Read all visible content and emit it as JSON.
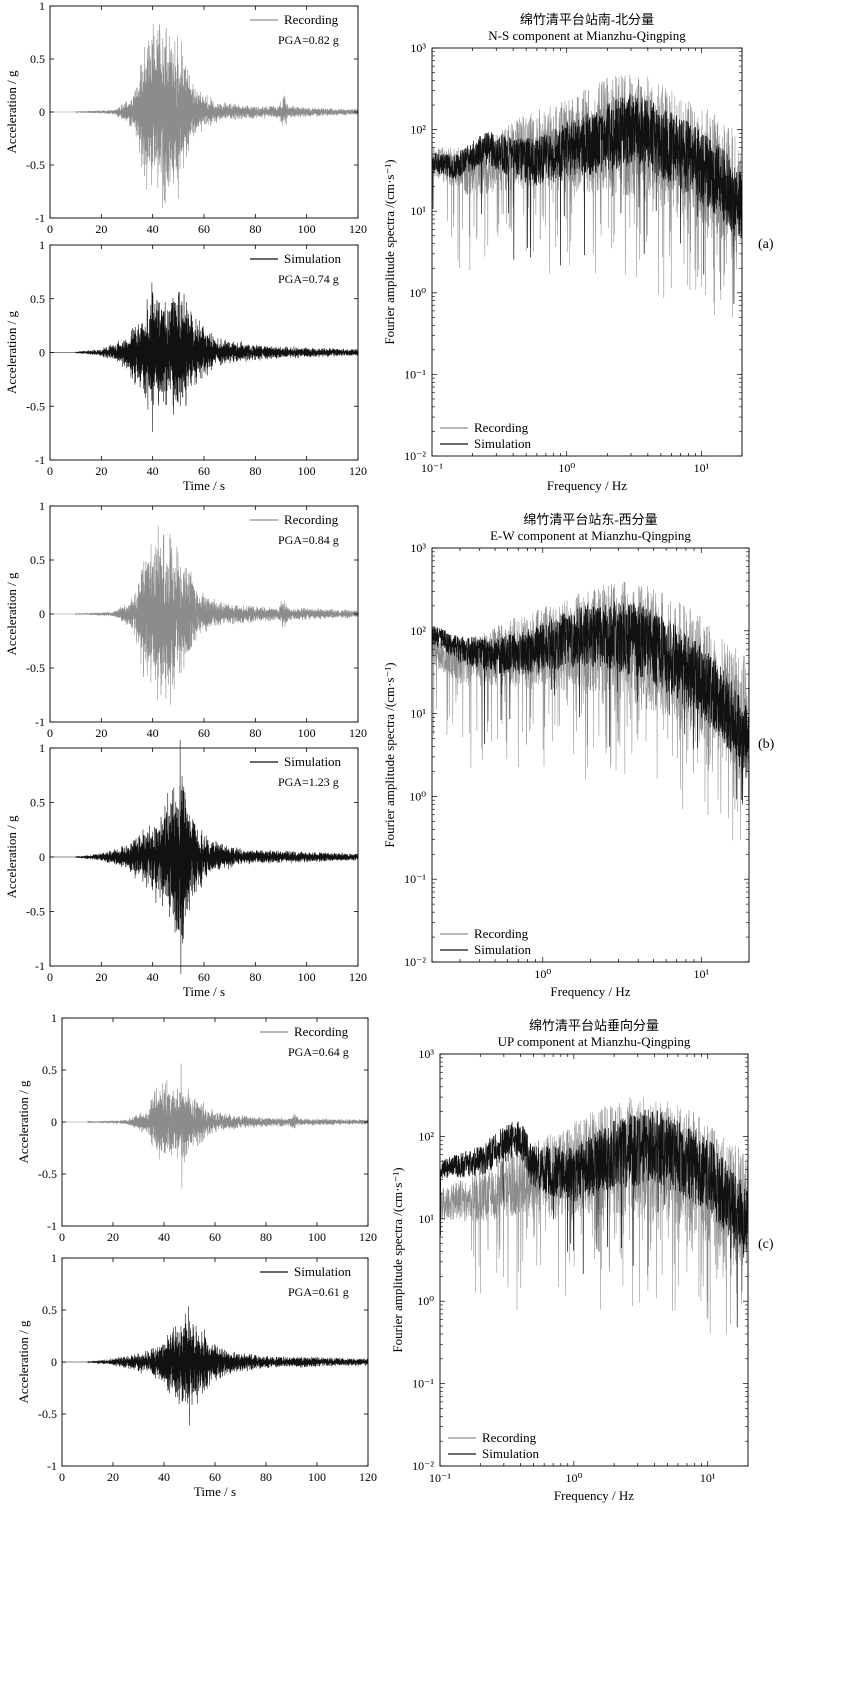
{
  "chart_data": [
    {
      "type": "line",
      "panel": "a",
      "id": "a-rec",
      "ylabel": "Acceleration / g",
      "xlabel": "",
      "xlim": [
        0,
        120
      ],
      "ylim": [
        -1,
        1
      ],
      "xticks": [
        "0",
        "20",
        "40",
        "60",
        "80",
        "100",
        "120"
      ],
      "yticks": [
        "-1",
        "-0.5",
        "0",
        "0.5",
        "1"
      ],
      "legend": {
        "label": "Recording",
        "placement": "top-right"
      },
      "annotation": "PGA=0.82 g",
      "series": [
        {
          "name": "Recording",
          "color": "#8c8c8c",
          "pga": 0.82,
          "pga_time": 50,
          "onset": 10,
          "envelope": [
            [
              10,
              0.004
            ],
            [
              25,
              0.02
            ],
            [
              33,
              0.15
            ],
            [
              37,
              0.6
            ],
            [
              42,
              0.75
            ],
            [
              47,
              0.65
            ],
            [
              52,
              0.5
            ],
            [
              57,
              0.2
            ],
            [
              65,
              0.08
            ],
            [
              80,
              0.05
            ],
            [
              89,
              0.05
            ],
            [
              91,
              0.15
            ],
            [
              93,
              0.05
            ],
            [
              110,
              0.03
            ],
            [
              120,
              0.025
            ]
          ]
        }
      ]
    },
    {
      "type": "line",
      "panel": "a",
      "id": "a-sim",
      "ylabel": "Acceleration / g",
      "xlabel": "Time / s",
      "xlim": [
        0,
        120
      ],
      "ylim": [
        -1,
        1
      ],
      "xticks": [
        "0",
        "20",
        "40",
        "60",
        "80",
        "100",
        "120"
      ],
      "yticks": [
        "-1",
        "-0.5",
        "0",
        "0.5",
        "1"
      ],
      "legend": {
        "label": "Simulation",
        "placement": "top-right"
      },
      "annotation": "PGA=0.74 g",
      "series": [
        {
          "name": "Simulation",
          "color": "#111111",
          "pga": 0.74,
          "pga_time": 40,
          "onset": 10,
          "envelope": [
            [
              10,
              0.005
            ],
            [
              20,
              0.03
            ],
            [
              28,
              0.1
            ],
            [
              35,
              0.3
            ],
            [
              40,
              0.5
            ],
            [
              47,
              0.45
            ],
            [
              51,
              0.55
            ],
            [
              56,
              0.3
            ],
            [
              65,
              0.12
            ],
            [
              80,
              0.06
            ],
            [
              100,
              0.04
            ],
            [
              120,
              0.03
            ]
          ]
        }
      ]
    },
    {
      "type": "line",
      "panel": "a",
      "id": "a-fas",
      "title": "绵竹清平台站南-北分量",
      "subtitle": "N-S component at Mianzhu-Qingping",
      "ylabel": "Fourier amplitude spectra /(cm·s⁻¹)",
      "xlabel": "Frequency / Hz",
      "xscale": "log",
      "yscale": "log",
      "xlim": [
        0.1,
        20
      ],
      "ylim": [
        0.01,
        1000
      ],
      "xticks": [
        "10⁻¹",
        "10⁰",
        "10¹"
      ],
      "yticks": [
        "10⁻²",
        "10⁻¹",
        "10⁰",
        "10¹",
        "10²",
        "10³"
      ],
      "legend": {
        "placement": "bottom-left"
      },
      "series": [
        {
          "name": "Recording",
          "color": "#8c8c8c",
          "width": 0.55,
          "trend": [
            [
              0.1,
              40
            ],
            [
              0.2,
              30
            ],
            [
              0.3,
              40
            ],
            [
              0.5,
              55
            ],
            [
              1,
              60
            ],
            [
              2,
              90
            ],
            [
              4,
              80
            ],
            [
              8,
              40
            ],
            [
              12,
              30
            ],
            [
              20,
              15
            ]
          ],
          "spread": 1.25,
          "dips": 0.12
        },
        {
          "name": "Simulation",
          "color": "#111111",
          "width": 0.7,
          "trend": [
            [
              0.1,
              40
            ],
            [
              0.15,
              35
            ],
            [
              0.25,
              60
            ],
            [
              0.4,
              45
            ],
            [
              0.6,
              40
            ],
            [
              1,
              55
            ],
            [
              2,
              80
            ],
            [
              3,
              100
            ],
            [
              4,
              90
            ],
            [
              6,
              60
            ],
            [
              10,
              35
            ],
            [
              15,
              20
            ],
            [
              20,
              10
            ]
          ],
          "spread": 0.75,
          "dips": 0.02
        }
      ]
    },
    {
      "type": "line",
      "panel": "b",
      "id": "b-rec",
      "ylabel": "Acceleration / g",
      "xlabel": "",
      "xlim": [
        0,
        120
      ],
      "ylim": [
        -1,
        1
      ],
      "xticks": [
        "0",
        "20",
        "40",
        "60",
        "80",
        "100",
        "120"
      ],
      "yticks": [
        "-1",
        "-0.5",
        "0",
        "0.5",
        "1"
      ],
      "legend": {
        "label": "Recording",
        "placement": "top-right"
      },
      "annotation": "PGA=0.84 g",
      "series": [
        {
          "name": "Recording",
          "color": "#8c8c8c",
          "pga": 0.84,
          "pga_time": 47,
          "onset": 10,
          "envelope": [
            [
              10,
              0.004
            ],
            [
              25,
              0.02
            ],
            [
              33,
              0.15
            ],
            [
              37,
              0.6
            ],
            [
              42,
              0.7
            ],
            [
              47,
              0.7
            ],
            [
              52,
              0.5
            ],
            [
              57,
              0.2
            ],
            [
              65,
              0.1
            ],
            [
              80,
              0.06
            ],
            [
              89,
              0.05
            ],
            [
              91,
              0.13
            ],
            [
              93,
              0.05
            ],
            [
              110,
              0.04
            ],
            [
              120,
              0.03
            ]
          ]
        }
      ]
    },
    {
      "type": "line",
      "panel": "b",
      "id": "b-sim",
      "ylabel": "Acceleration / g",
      "xlabel": "Time / s",
      "xlim": [
        0,
        120
      ],
      "ylim": [
        -1,
        1
      ],
      "xticks": [
        "0",
        "20",
        "40",
        "60",
        "80",
        "100",
        "120"
      ],
      "yticks": [
        "-1",
        "-0.5",
        "0",
        "0.5",
        "1"
      ],
      "legend": {
        "label": "Simulation",
        "placement": "top-right"
      },
      "annotation": "PGA=1.23 g",
      "series": [
        {
          "name": "Simulation",
          "color": "#111111",
          "pga": 1.23,
          "pga_time": 51,
          "onset": 10,
          "envelope": [
            [
              10,
              0.005
            ],
            [
              20,
              0.03
            ],
            [
              30,
              0.1
            ],
            [
              38,
              0.25
            ],
            [
              44,
              0.4
            ],
            [
              49,
              0.65
            ],
            [
              52,
              0.65
            ],
            [
              56,
              0.35
            ],
            [
              62,
              0.15
            ],
            [
              75,
              0.06
            ],
            [
              100,
              0.04
            ],
            [
              120,
              0.03
            ]
          ]
        }
      ]
    },
    {
      "type": "line",
      "panel": "b",
      "id": "b-fas",
      "title": "绵竹清平台站东-西分量",
      "subtitle": "E-W component at Mianzhu-Qingping",
      "ylabel": "Fourier amplitude spectra /(cm·s⁻¹)",
      "xlabel": "Frequency / Hz",
      "xscale": "log",
      "yscale": "log",
      "xlim": [
        0.2,
        20
      ],
      "ylim": [
        0.01,
        1000
      ],
      "xticks": [
        "10⁰",
        "10¹"
      ],
      "yticks": [
        "10⁻²",
        "10⁻¹",
        "10⁰",
        "10¹",
        "10²",
        "10³"
      ],
      "legend": {
        "placement": "bottom-left"
      },
      "series": [
        {
          "name": "Recording",
          "color": "#8c8c8c",
          "width": 0.55,
          "trend": [
            [
              0.2,
              60
            ],
            [
              0.3,
              40
            ],
            [
              0.5,
              50
            ],
            [
              1,
              60
            ],
            [
              2,
              80
            ],
            [
              4,
              70
            ],
            [
              8,
              40
            ],
            [
              12,
              20
            ],
            [
              20,
              8
            ]
          ],
          "spread": 1.25,
          "dips": 0.12
        },
        {
          "name": "Simulation",
          "color": "#111111",
          "width": 0.7,
          "trend": [
            [
              0.2,
              90
            ],
            [
              0.3,
              60
            ],
            [
              0.5,
              50
            ],
            [
              0.8,
              55
            ],
            [
              1.2,
              70
            ],
            [
              2,
              90
            ],
            [
              4,
              80
            ],
            [
              6,
              50
            ],
            [
              10,
              25
            ],
            [
              15,
              10
            ],
            [
              20,
              4
            ]
          ],
          "spread": 0.75,
          "dips": 0.02
        }
      ]
    },
    {
      "type": "line",
      "panel": "c",
      "id": "c-rec",
      "ylabel": "Acceleration / g",
      "xlabel": "",
      "xlim": [
        0,
        120
      ],
      "ylim": [
        -1,
        1
      ],
      "xticks": [
        "0",
        "20",
        "40",
        "60",
        "80",
        "100",
        "120"
      ],
      "yticks": [
        "-1",
        "-0.5",
        "0",
        "0.5",
        "1"
      ],
      "legend": {
        "label": "Recording",
        "placement": "top-right"
      },
      "annotation": "PGA=0.64 g",
      "series": [
        {
          "name": "Recording",
          "color": "#8c8c8c",
          "pga": 0.64,
          "pga_time": 47,
          "onset": 10,
          "envelope": [
            [
              10,
              0.003
            ],
            [
              25,
              0.02
            ],
            [
              33,
              0.1
            ],
            [
              37,
              0.3
            ],
            [
              42,
              0.33
            ],
            [
              47,
              0.35
            ],
            [
              52,
              0.25
            ],
            [
              57,
              0.12
            ],
            [
              65,
              0.06
            ],
            [
              80,
              0.04
            ],
            [
              89,
              0.035
            ],
            [
              91,
              0.07
            ],
            [
              93,
              0.03
            ],
            [
              110,
              0.025
            ],
            [
              120,
              0.02
            ]
          ]
        }
      ]
    },
    {
      "type": "line",
      "panel": "c",
      "id": "c-sim",
      "ylabel": "Acceleration / g",
      "xlabel": "Time / s",
      "xlim": [
        0,
        120
      ],
      "ylim": [
        -1,
        1
      ],
      "xticks": [
        "0",
        "20",
        "40",
        "60",
        "80",
        "100",
        "120"
      ],
      "yticks": [
        "-1",
        "-0.5",
        "0",
        "0.5",
        "1"
      ],
      "legend": {
        "label": "Simulation",
        "placement": "top-right"
      },
      "annotation": "PGA=0.61 g",
      "series": [
        {
          "name": "Simulation",
          "color": "#111111",
          "pga": 0.61,
          "pga_time": 50,
          "onset": 10,
          "envelope": [
            [
              10,
              0.005
            ],
            [
              20,
              0.03
            ],
            [
              30,
              0.08
            ],
            [
              38,
              0.15
            ],
            [
              44,
              0.3
            ],
            [
              49,
              0.4
            ],
            [
              53,
              0.35
            ],
            [
              58,
              0.18
            ],
            [
              65,
              0.1
            ],
            [
              80,
              0.05
            ],
            [
              100,
              0.04
            ],
            [
              120,
              0.03
            ]
          ]
        }
      ]
    },
    {
      "type": "line",
      "panel": "c",
      "id": "c-fas",
      "title": "绵竹清平台站垂向分量",
      "subtitle": "UP component at Mianzhu-Qingping",
      "ylabel": "Fourier amplitude spectra /(cm·s⁻¹)",
      "xlabel": "Frequency / Hz",
      "xscale": "log",
      "yscale": "log",
      "xlim": [
        0.1,
        20
      ],
      "ylim": [
        0.01,
        1000
      ],
      "xticks": [
        "10⁻¹",
        "10⁰",
        "10¹"
      ],
      "yticks": [
        "10⁻²",
        "10⁻¹",
        "10⁰",
        "10¹",
        "10²",
        "10³"
      ],
      "legend": {
        "placement": "bottom-left"
      },
      "series": [
        {
          "name": "Recording",
          "color": "#8c8c8c",
          "width": 0.55,
          "trend": [
            [
              0.1,
              15
            ],
            [
              0.2,
              18
            ],
            [
              0.3,
              25
            ],
            [
              0.5,
              30
            ],
            [
              1,
              40
            ],
            [
              2,
              55
            ],
            [
              4,
              55
            ],
            [
              8,
              35
            ],
            [
              12,
              20
            ],
            [
              20,
              12
            ]
          ],
          "spread": 1.25,
          "dips": 0.12
        },
        {
          "name": "Simulation",
          "color": "#111111",
          "width": 0.7,
          "trend": [
            [
              0.1,
              40
            ],
            [
              0.2,
              50
            ],
            [
              0.3,
              80
            ],
            [
              0.4,
              100
            ],
            [
              0.5,
              40
            ],
            [
              1,
              35
            ],
            [
              2,
              60
            ],
            [
              4,
              80
            ],
            [
              6,
              55
            ],
            [
              10,
              35
            ],
            [
              15,
              15
            ],
            [
              20,
              8
            ]
          ],
          "spread": 0.75,
          "dips": 0.02
        }
      ]
    }
  ],
  "panel_labels": {
    "a": "(a)",
    "b": "(b)",
    "c": "(c)"
  }
}
